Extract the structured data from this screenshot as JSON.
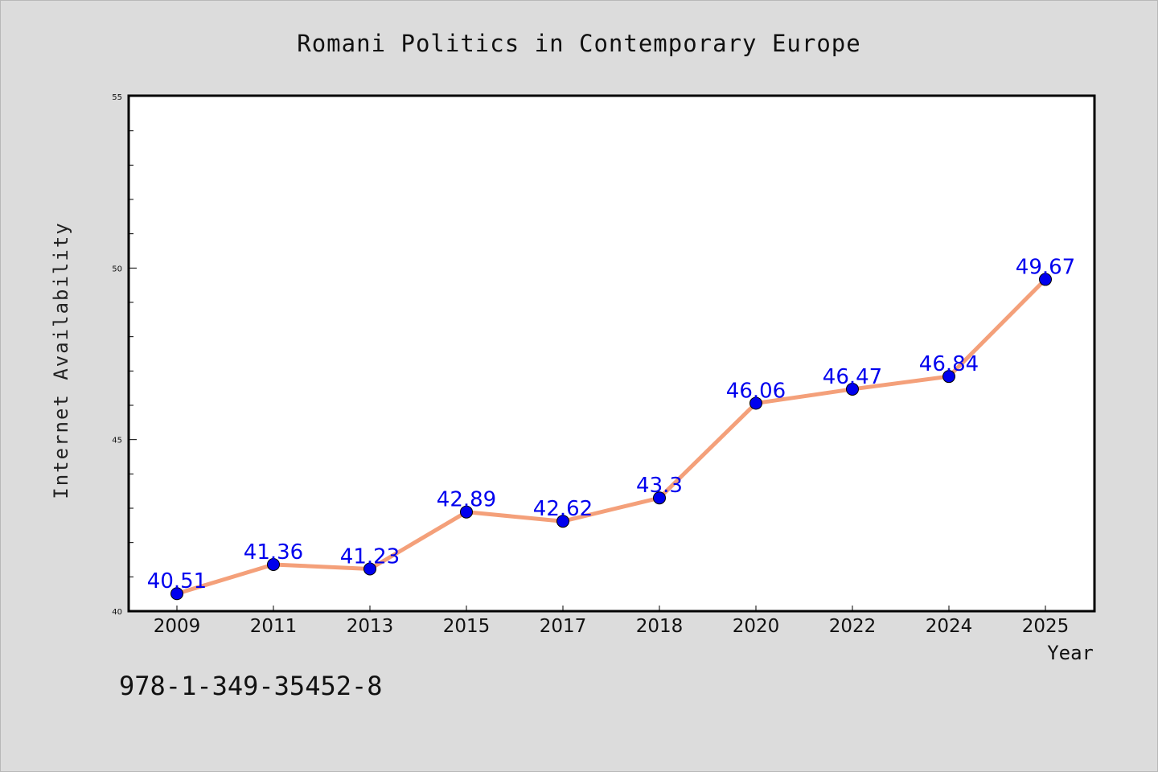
{
  "chart_data": {
    "type": "line",
    "title": "Romani Politics in Contemporary Europe",
    "xlabel": "Year",
    "ylabel": "Internet Availability",
    "categories": [
      "2009",
      "2011",
      "2013",
      "2015",
      "2017",
      "2018",
      "2020",
      "2022",
      "2024",
      "2025"
    ],
    "series": [
      {
        "values": [
          40.51,
          41.36,
          41.23,
          42.89,
          42.62,
          43.3,
          46.06,
          46.47,
          46.84,
          49.67
        ],
        "data_labels": [
          "40.51",
          "41.36",
          "41.23",
          "42.89",
          "42.62",
          "43.3",
          "46.06",
          "46.47",
          "46.84",
          "49.67"
        ],
        "line_color": "#f4a07a",
        "marker_color": "#0000ee"
      }
    ],
    "ylim": [
      40,
      55
    ],
    "yticks": [
      "40",
      "45",
      "50",
      "55"
    ],
    "grid": false,
    "legend": "none"
  },
  "footer": {
    "isbn": "978-1-349-35452-8"
  }
}
